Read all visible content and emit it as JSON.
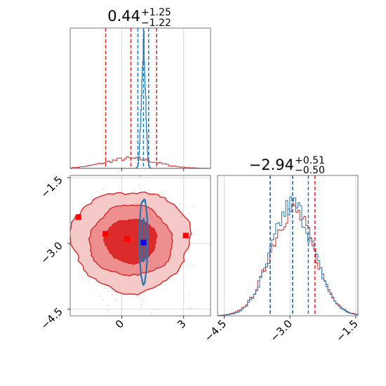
{
  "chart_data": [
    {
      "panel": "histogram-x",
      "type": "histogram",
      "title": {
        "value": "0.44",
        "plus": "+1.25",
        "minus": "−1.22"
      },
      "xlim": [
        -2.5,
        4.3
      ],
      "grid": true,
      "quantile_lines": [
        {
          "series": "red",
          "values": [
            -0.78,
            0.44,
            1.69
          ]
        },
        {
          "series": "blue",
          "values": [
            0.78,
            1.05,
            1.3
          ]
        }
      ],
      "series": [
        {
          "color": "#d62728",
          "distribution": "broad",
          "center": 0.44,
          "sigma": 1.25
        },
        {
          "color": "#1f77b4",
          "distribution": "narrow",
          "center": 1.05,
          "sigma": 0.1
        }
      ]
    },
    {
      "panel": "histogram-y",
      "type": "histogram",
      "title": {
        "value": "−2.94",
        "plus": "+0.51",
        "minus": "−0.50"
      },
      "xlim": [
        -4.65,
        -1.45
      ],
      "xticks": [
        "−4.5",
        "−3.0",
        "−1.5"
      ],
      "xtick_values": [
        -4.5,
        -3.0,
        -1.5
      ],
      "grid": true,
      "quantile_lines": [
        {
          "series": "red",
          "values": [
            -3.45,
            -2.94,
            -2.43
          ]
        },
        {
          "series": "blue",
          "values": [
            -3.45,
            -2.94,
            -2.58
          ]
        }
      ],
      "series": [
        {
          "color": "#d62728",
          "center": -2.94,
          "sigma": 0.5
        },
        {
          "color": "#1f77b4",
          "center": -2.94,
          "sigma": 0.48
        }
      ]
    },
    {
      "panel": "scatter-2d",
      "type": "scatter",
      "xlim": [
        -2.5,
        4.3
      ],
      "ylim": [
        -4.65,
        -1.45
      ],
      "xticks": [
        "0",
        "3"
      ],
      "xtick_values": [
        0,
        3
      ],
      "yticks": [
        "−1.5",
        "−3.0",
        "−4.5"
      ],
      "ytick_values": [
        -1.5,
        -3.0,
        -4.5
      ],
      "grid": true,
      "red_contours": {
        "center": [
          0.44,
          -2.94
        ],
        "sx": 1.25,
        "sy": 0.5,
        "levels": [
          1.0,
          1.6,
          2.3
        ]
      },
      "blue_contours": {
        "center": [
          1.05,
          -2.94
        ],
        "sx": 0.1,
        "sy": 0.48,
        "levels": [
          1.0,
          2.0
        ]
      },
      "red_points": [
        {
          "x": -2.1,
          "y": -2.4
        },
        {
          "x": -0.8,
          "y": -2.78
        },
        {
          "x": 0.25,
          "y": -2.9
        },
        {
          "x": 3.1,
          "y": -2.82
        }
      ],
      "blue_points": [
        {
          "x": 1.05,
          "y": -2.98
        }
      ]
    }
  ]
}
